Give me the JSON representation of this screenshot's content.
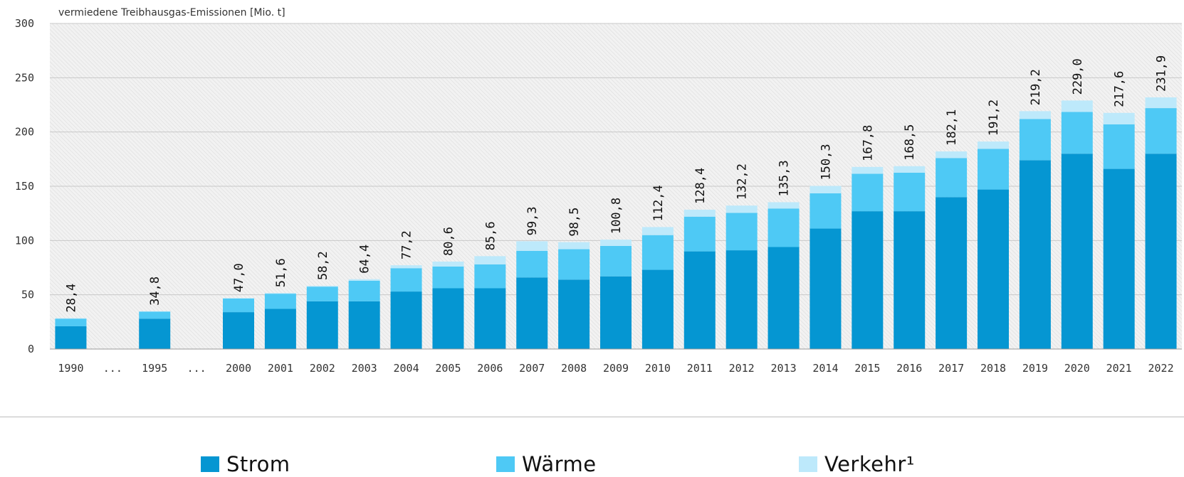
{
  "chart_data": {
    "type": "bar",
    "stacked": true,
    "ylabel": "vermiedene Treibhausgas-Emissionen [Mio. t]",
    "ylim": [
      0,
      300
    ],
    "yticks": [
      0,
      50,
      100,
      150,
      200,
      250,
      300
    ],
    "categories": [
      "1990",
      "...",
      "1995",
      "...",
      "2000",
      "2001",
      "2002",
      "2003",
      "2004",
      "2005",
      "2006",
      "2007",
      "2008",
      "2009",
      "2010",
      "2011",
      "2012",
      "2013",
      "2014",
      "2015",
      "2016",
      "2017",
      "2018",
      "2019",
      "2020",
      "2021",
      "2022"
    ],
    "totals": [
      "28,4",
      "",
      "34,8",
      "",
      "47,0",
      "51,6",
      "58,2",
      "64,4",
      "77,2",
      "80,6",
      "85,6",
      "99,3",
      "98,5",
      "100,8",
      "112,4",
      "128,4",
      "132,2",
      "135,3",
      "150,3",
      "167,8",
      "168,5",
      "182,1",
      "191,2",
      "219,2",
      "229,0",
      "217,6",
      "231,9"
    ],
    "series": [
      {
        "name": "Strom",
        "color": "#0596d2",
        "values": [
          21,
          null,
          28,
          null,
          34,
          37,
          44,
          44,
          53,
          56,
          56,
          66,
          64,
          67,
          73,
          90,
          91,
          94,
          111,
          127,
          127,
          140,
          147,
          174,
          180,
          166,
          180
        ]
      },
      {
        "name": "Wärme",
        "color": "#4ec9f5",
        "values": [
          7,
          null,
          6.5,
          null,
          12.5,
          14,
          13.5,
          19,
          21.5,
          20,
          22,
          24.5,
          28,
          28,
          32,
          32,
          34.5,
          35.5,
          32.5,
          34.5,
          35.5,
          36,
          37.5,
          38,
          38.5,
          41,
          42
        ]
      },
      {
        "name": "Verkehr¹",
        "color": "#bde9fb",
        "values": [
          0.4,
          null,
          0.3,
          null,
          0.5,
          0.6,
          0.7,
          1.4,
          2.7,
          4.6,
          7.6,
          8.8,
          6.5,
          5.8,
          7.4,
          6.4,
          6.7,
          5.8,
          6.8,
          6.3,
          6,
          6.1,
          6.7,
          7.2,
          10.5,
          10.6,
          9.9
        ]
      }
    ],
    "grid": true,
    "legend_position": "bottom"
  }
}
